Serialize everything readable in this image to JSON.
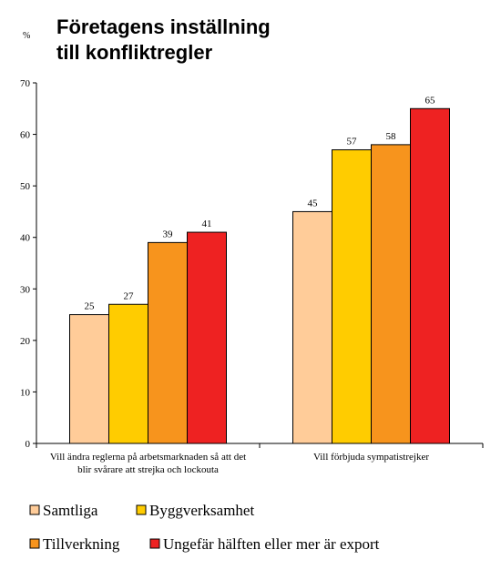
{
  "chart_data": {
    "type": "bar",
    "title_lines": [
      "Företagens inställning",
      "till konfliktregler"
    ],
    "unit_label": "%",
    "ylim": [
      0,
      70
    ],
    "y_ticks": [
      0,
      10,
      20,
      30,
      40,
      50,
      60,
      70
    ],
    "categories": [
      [
        "Vill ändra reglerna på arbetsmarknaden så att det",
        "blir svårare att strejka och lockouta"
      ],
      [
        "Vill förbjuda sympatistrejker"
      ]
    ],
    "series": [
      {
        "name": "Samtliga",
        "color": "#FFCC99",
        "values": [
          25,
          45
        ]
      },
      {
        "name": "Byggverksamhet",
        "color": "#FFCC00",
        "values": [
          27,
          57
        ]
      },
      {
        "name": "Tillverkning",
        "color": "#F7941D",
        "values": [
          39,
          58
        ]
      },
      {
        "name": "Ungefär hälften eller mer är export",
        "color": "#EE2222",
        "values": [
          41,
          65
        ]
      }
    ],
    "grid": false,
    "legend_position": "bottom"
  }
}
